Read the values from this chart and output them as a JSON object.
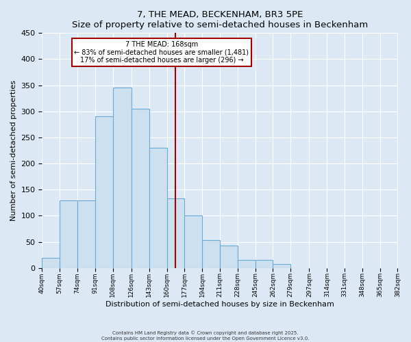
{
  "title": "7, THE MEAD, BECKENHAM, BR3 5PE",
  "subtitle": "Size of property relative to semi-detached houses in Beckenham",
  "xlabel": "Distribution of semi-detached houses by size in Beckenham",
  "ylabel": "Number of semi-detached properties",
  "bin_edges": [
    40,
    57,
    74,
    91,
    108,
    126,
    143,
    160,
    177,
    194,
    211,
    228,
    245,
    262,
    279,
    297,
    314,
    331,
    348,
    365,
    382
  ],
  "bin_labels": [
    "40sqm",
    "57sqm",
    "74sqm",
    "91sqm",
    "108sqm",
    "126sqm",
    "143sqm",
    "160sqm",
    "177sqm",
    "194sqm",
    "211sqm",
    "228sqm",
    "245sqm",
    "262sqm",
    "279sqm",
    "297sqm",
    "314sqm",
    "331sqm",
    "348sqm",
    "365sqm",
    "382sqm"
  ],
  "counts": [
    20,
    130,
    130,
    290,
    345,
    305,
    230,
    133,
    100,
    54,
    43,
    16,
    15,
    8,
    0,
    0,
    0,
    0,
    0,
    0
  ],
  "bar_facecolor": "#cde0f0",
  "bar_edgecolor": "#6aaad4",
  "vline_x": 168,
  "vline_color": "#a00000",
  "annotation_title": "7 THE MEAD: 168sqm",
  "annotation_line1": "← 83% of semi-detached houses are smaller (1,481)",
  "annotation_line2": "17% of semi-detached houses are larger (296) →",
  "annotation_box_edgecolor": "#a00000",
  "annotation_box_facecolor": "#ffffff",
  "ylim": [
    0,
    450
  ],
  "yticks": [
    0,
    50,
    100,
    150,
    200,
    250,
    300,
    350,
    400,
    450
  ],
  "background_color": "#dce9f5",
  "plot_bg_color": "#dce9f5",
  "grid_color": "#ffffff",
  "footer1": "Contains HM Land Registry data © Crown copyright and database right 2025.",
  "footer2": "Contains public sector information licensed under the Open Government Licence v3.0."
}
